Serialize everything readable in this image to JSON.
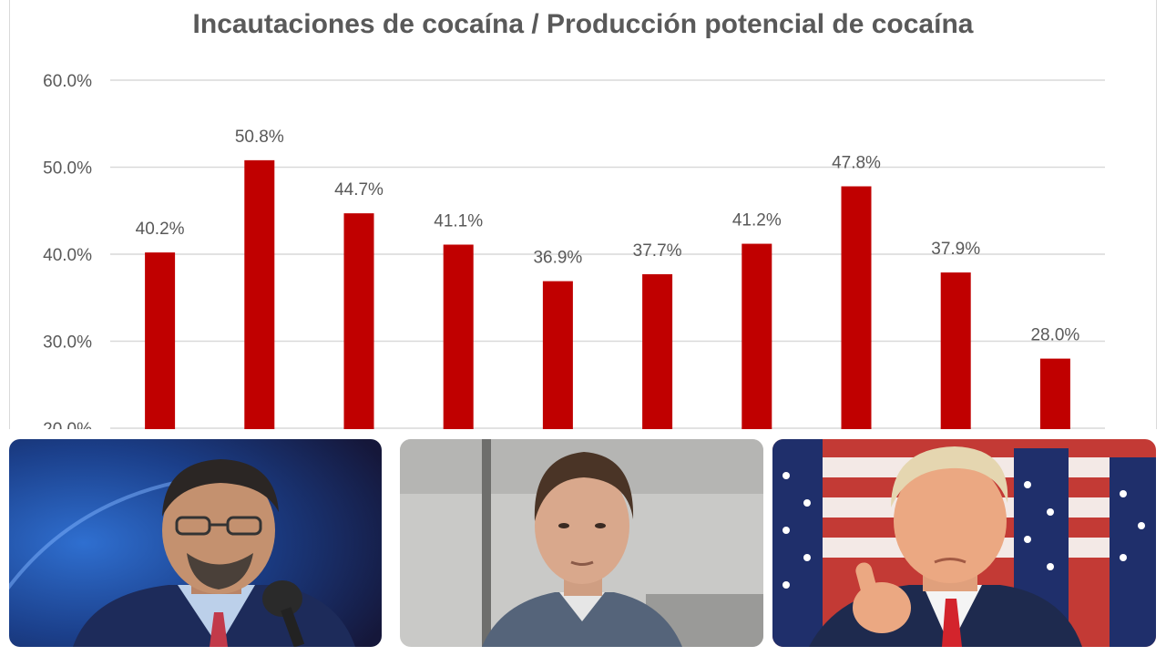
{
  "chart_data": {
    "type": "bar",
    "title": "Incautaciones de cocaína / Producción potencial de cocaína",
    "xlabel": "",
    "ylabel": "",
    "categories": [
      "",
      "",
      "",
      "",
      "",
      "",
      "",
      "",
      "",
      ""
    ],
    "values": [
      40.2,
      50.8,
      44.7,
      41.1,
      36.9,
      37.7,
      41.2,
      47.8,
      37.9,
      28.0
    ],
    "data_labels": [
      "40.2%",
      "50.8%",
      "44.7%",
      "41.1%",
      "36.9%",
      "37.7%",
      "41.2%",
      "47.8%",
      "37.9%",
      "28.0%"
    ],
    "ylim": [
      20,
      60
    ],
    "yticks": [
      20,
      30,
      40,
      50,
      60
    ],
    "ytick_labels": [
      "20.0%",
      "30.0%",
      "40.0%",
      "50.0%",
      "60.0%"
    ],
    "grid": true,
    "legend": "none",
    "bar_color": "#c00000"
  },
  "colors": {
    "title": "#595959",
    "tick": "#595959",
    "gridline": "#d9d9d9",
    "bar": "#c00000"
  },
  "photos": [
    {
      "subject": "man-speaking-at-microphone-photo"
    },
    {
      "subject": "man-portrait-photo"
    },
    {
      "subject": "man-pointing-with-flags-photo"
    }
  ]
}
